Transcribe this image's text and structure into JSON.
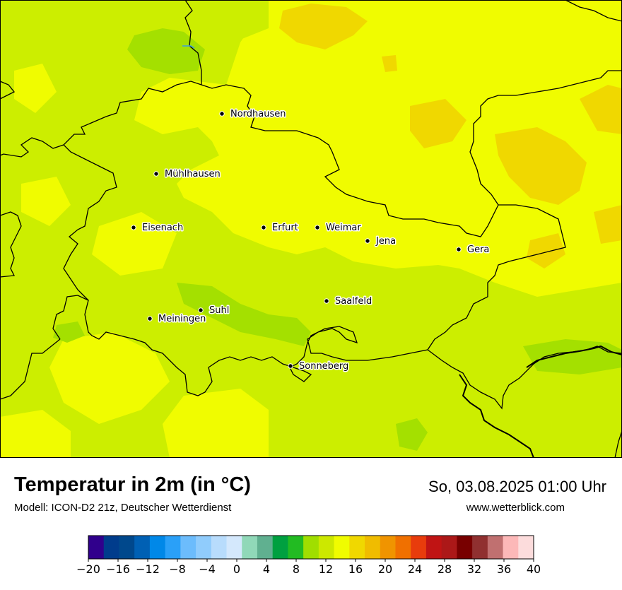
{
  "map": {
    "cities": [
      {
        "name": "Nordhausen"
      },
      {
        "name": "Mühlhausen"
      },
      {
        "name": "Eisenach"
      },
      {
        "name": "Erfurt"
      },
      {
        "name": "Weimar"
      },
      {
        "name": "Jena"
      },
      {
        "name": "Gera"
      },
      {
        "name": "Suhl"
      },
      {
        "name": "Meiningen"
      },
      {
        "name": "Saalfeld"
      },
      {
        "name": "Sonneberg"
      }
    ],
    "colors": {
      "base": "#f0fc00",
      "warm": "#f0d800",
      "mild": "#ccee00",
      "cool": "#a4e000"
    }
  },
  "footer": {
    "title": "Temperatur in 2m (in °C)",
    "model": "Modell: ICON-D2 21z, Deutscher Wetterdienst",
    "datetime": "So, 03.08.2025 01:00 Uhr",
    "website": "www.wetterblick.com"
  },
  "legend": {
    "min": -20,
    "max": 40,
    "step": 2,
    "ticks": [
      "−20",
      "−16",
      "−12",
      "−8",
      "−4",
      "0",
      "4",
      "8",
      "12",
      "16",
      "20",
      "24",
      "28",
      "32",
      "36",
      "40"
    ],
    "colors": [
      "#30008c",
      "#003c8c",
      "#00488c",
      "#0060b4",
      "#0088e8",
      "#2aa0f8",
      "#6cbcfc",
      "#90ccfc",
      "#b8dcfc",
      "#d4e8fc",
      "#90d8b8",
      "#60b090",
      "#00a040",
      "#22bb22",
      "#a0de00",
      "#cce800",
      "#f0fc00",
      "#f0d800",
      "#f0bc00",
      "#f09400",
      "#f07000",
      "#e83c0c",
      "#c01414",
      "#ac1818",
      "#780000",
      "#903030",
      "#c07070",
      "#fcb8b8",
      "#fcdcdc"
    ]
  }
}
